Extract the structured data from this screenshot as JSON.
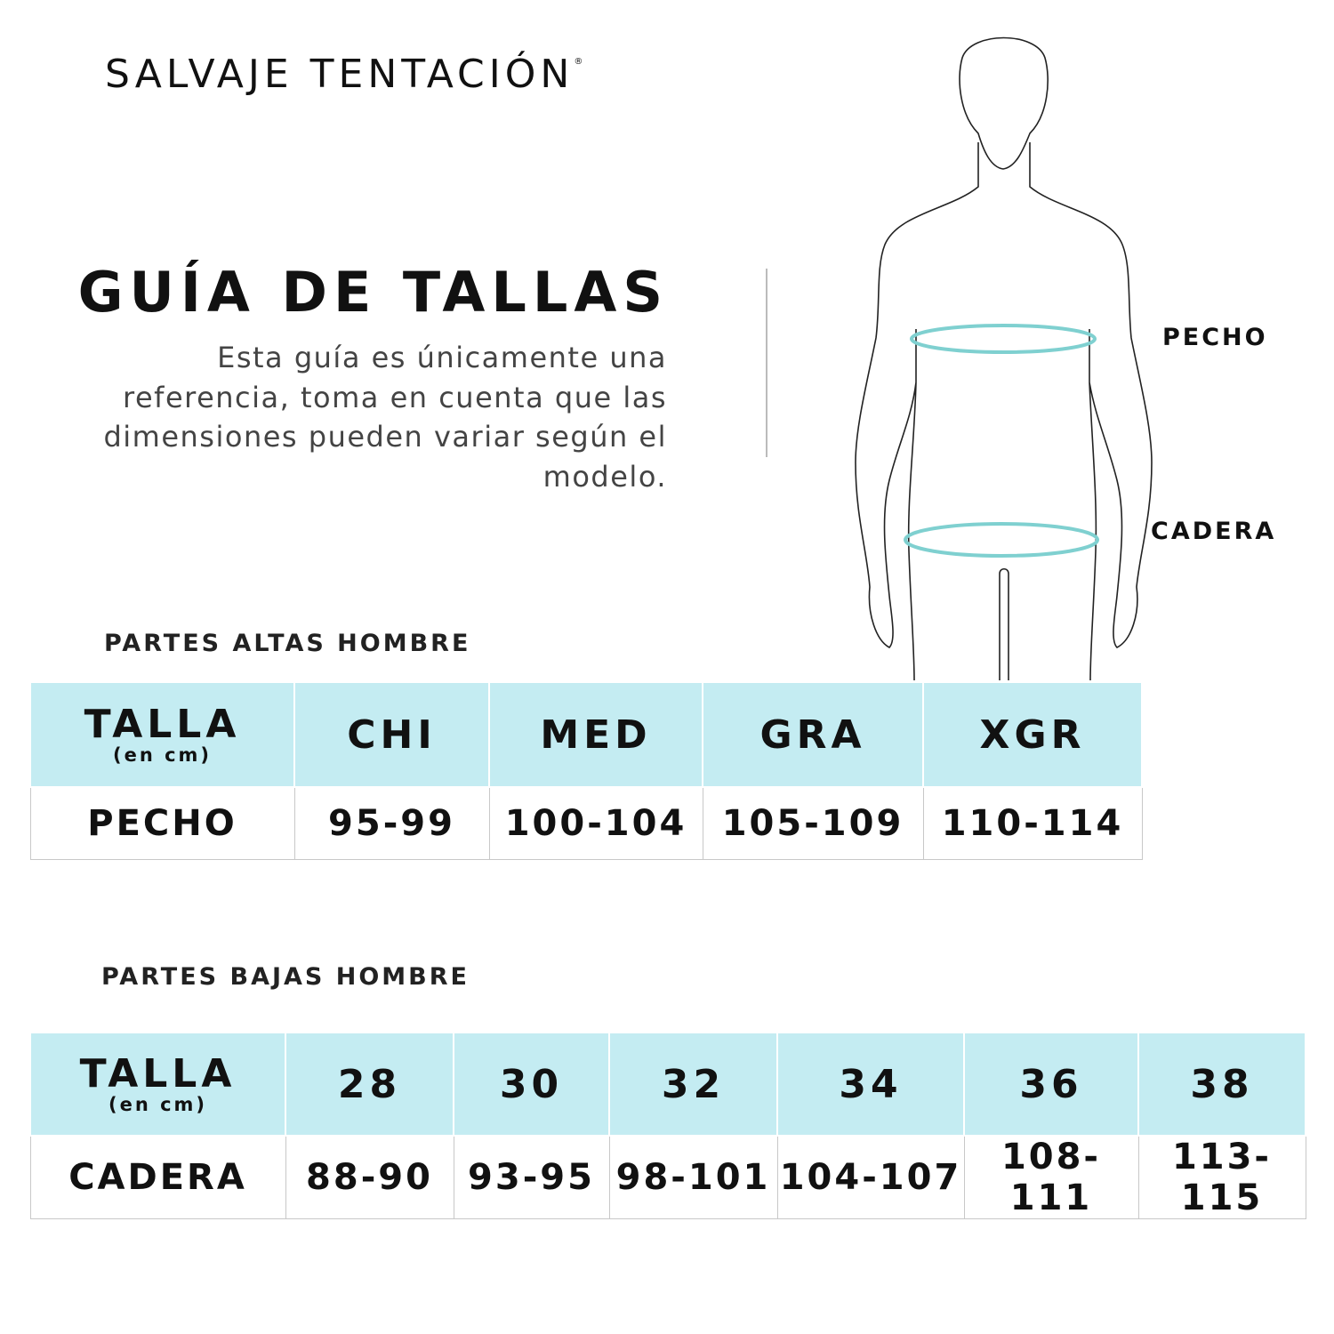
{
  "brand": {
    "name": "SALVAJE TENTACIÓN",
    "mark": "®"
  },
  "header": {
    "title": "GUÍA DE TALLAS",
    "description": "Esta guía es únicamente una referencia, toma en cuenta que las dimensiones pueden variar según el modelo."
  },
  "figure": {
    "labels": {
      "chest": "PECHO",
      "hip": "CADERA"
    },
    "ring_color": "#7fd0d0"
  },
  "colors": {
    "header_bg": "#c4ecf2"
  },
  "tops": {
    "section_title": "PARTES ALTAS HOMBRE",
    "header_label": "TALLA",
    "header_unit": "(en cm)",
    "sizes": [
      "CHI",
      "MED",
      "GRA",
      "XGR"
    ],
    "row_label": "PECHO",
    "values": [
      "95-99",
      "100-104",
      "105-109",
      "110-114"
    ]
  },
  "bottoms": {
    "section_title": "PARTES BAJAS HOMBRE",
    "header_label": "TALLA",
    "header_unit": "(en cm)",
    "sizes": [
      "28",
      "30",
      "32",
      "34",
      "36",
      "38"
    ],
    "row_label": "CADERA",
    "values": [
      "88-90",
      "93-95",
      "98-101",
      "104-107",
      "108-111",
      "113-115"
    ]
  }
}
